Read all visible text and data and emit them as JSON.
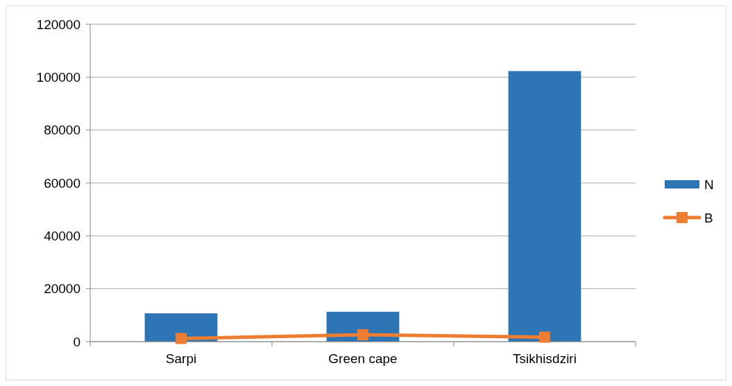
{
  "chart_data": {
    "type": "bar",
    "categories": [
      "Sarpi",
      "Green cape",
      "Tsikhisdziri"
    ],
    "series": [
      {
        "name": "N",
        "color": "#2e75b6",
        "values": [
          10700,
          11300,
          102300
        ]
      },
      {
        "name": "B",
        "type": "line",
        "color": "#ed7d31",
        "values": [
          1200,
          2600,
          1700
        ]
      }
    ],
    "ylim": [
      0,
      120000
    ],
    "yticks": [
      0,
      20000,
      40000,
      60000,
      80000,
      100000,
      120000
    ],
    "grid": "y",
    "legend": "right",
    "marker": "square"
  }
}
